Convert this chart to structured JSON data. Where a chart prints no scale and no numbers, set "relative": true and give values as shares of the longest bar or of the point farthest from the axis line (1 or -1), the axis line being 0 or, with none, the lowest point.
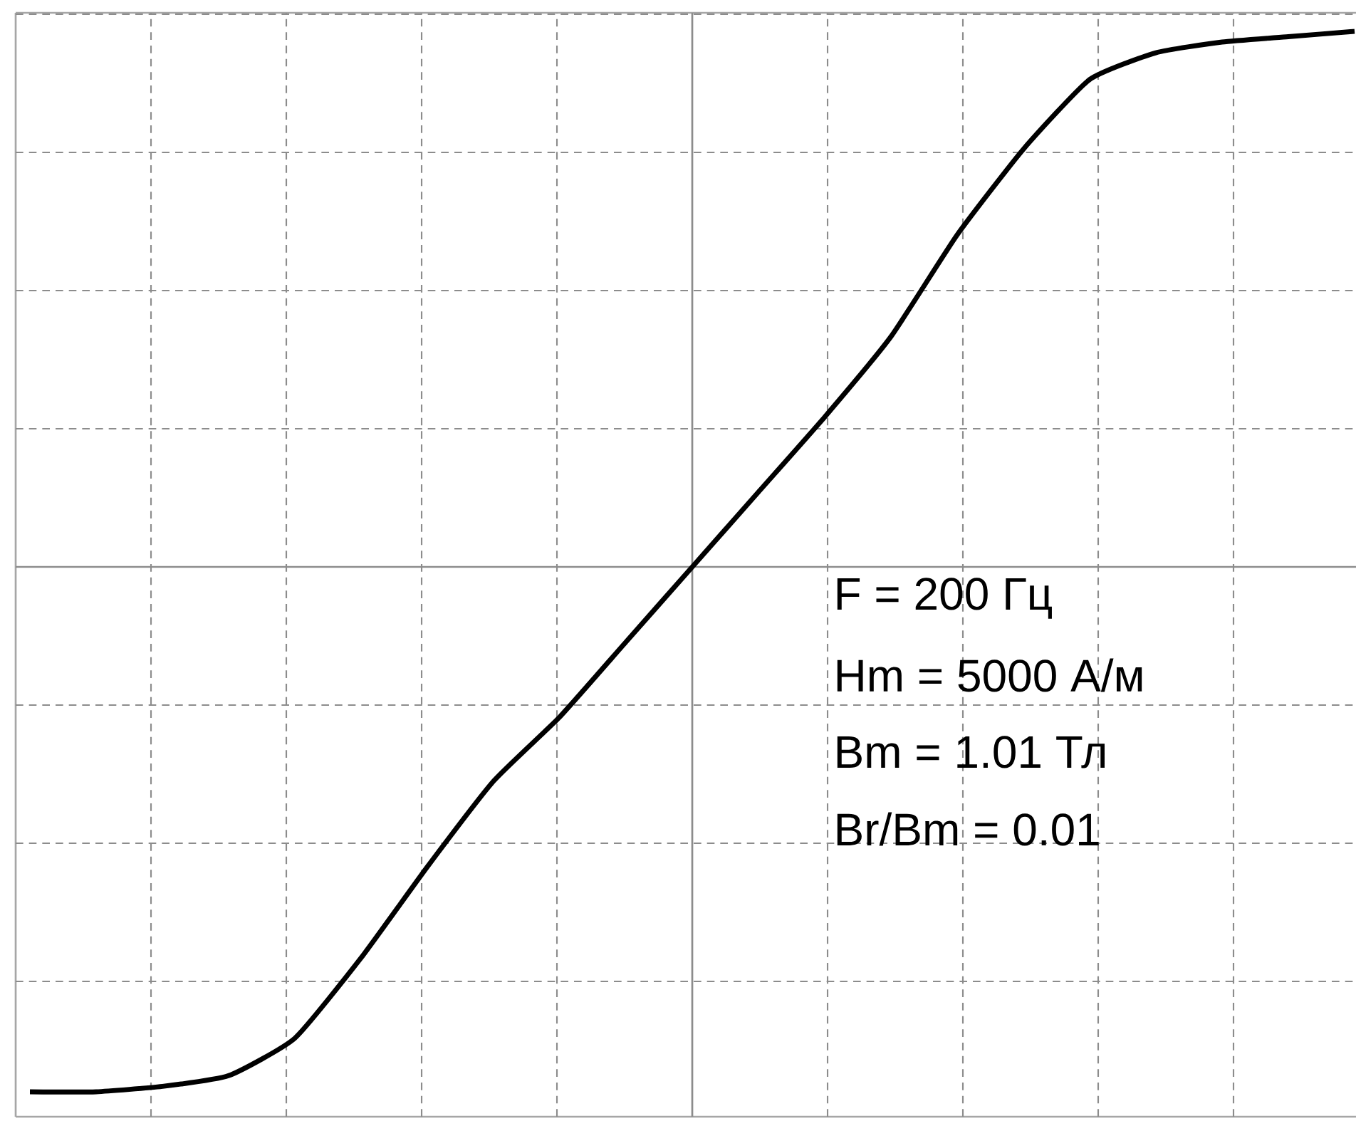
{
  "chart_data": {
    "type": "line",
    "relative": true,
    "grid": true,
    "categories": [
      null,
      null,
      null,
      null,
      null,
      null,
      null,
      null,
      null,
      null,
      null,
      null,
      null,
      null,
      null,
      null,
      null,
      null,
      null,
      null,
      null
    ],
    "series": [
      {
        "color": "#000000",
        "values": [
          -0.98,
          -0.98,
          -0.97,
          -0.95,
          -0.88,
          -0.73,
          -0.56,
          -0.4,
          -0.28,
          -0.14,
          0,
          0.14,
          0.28,
          0.43,
          0.62,
          0.78,
          0.91,
          0.96,
          0.98,
          0.99,
          1
        ]
      }
    ],
    "annotations": [
      "F = 200 Гц",
      "Hm = 5000 А/м",
      "Bm = 1.01 Тл",
      "Br/Bm = 0.01"
    ]
  }
}
